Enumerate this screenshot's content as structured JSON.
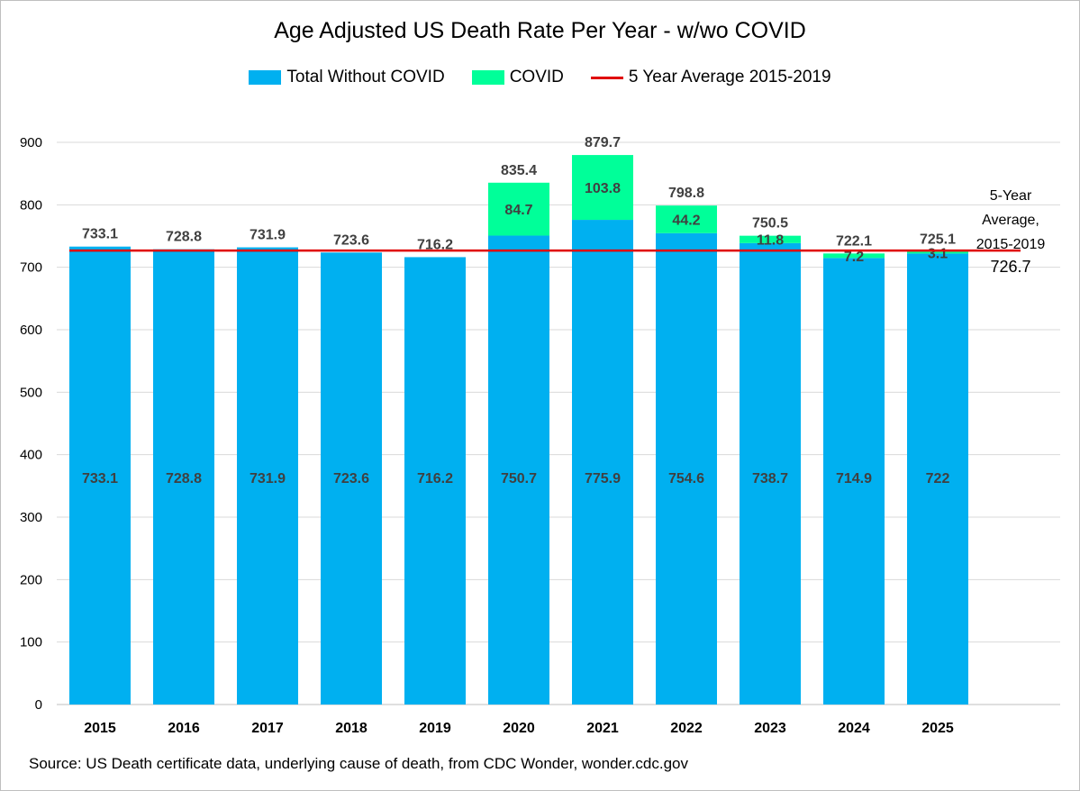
{
  "chart_data": {
    "type": "bar",
    "stacked": true,
    "title": "Age Adjusted US Death Rate Per Year - w/wo COVID",
    "categories": [
      "2015",
      "2016",
      "2017",
      "2018",
      "2019",
      "2020",
      "2021",
      "2022",
      "2023",
      "2024",
      "2025"
    ],
    "series": [
      {
        "name": "Total Without COVID",
        "color": "#00B0F0",
        "values": [
          733.1,
          728.8,
          731.9,
          723.6,
          716.2,
          750.7,
          775.9,
          754.6,
          738.7,
          714.9,
          722
        ]
      },
      {
        "name": "COVID",
        "color": "#00FF99",
        "values": [
          null,
          null,
          null,
          null,
          null,
          84.7,
          103.8,
          44.2,
          11.8,
          7.2,
          3.1
        ]
      }
    ],
    "totals": [
      "733.1",
      "728.8",
      "731.9",
      "723.6",
      "716.2",
      "835.4",
      "879.7",
      "798.8",
      "750.5",
      "722.1",
      "725.1"
    ],
    "base_labels": [
      "733.1",
      "728.8",
      "731.9",
      "723.6",
      "716.2",
      "750.7",
      "775.9",
      "754.6",
      "738.7",
      "714.9",
      "722"
    ],
    "covid_labels": [
      "",
      "",
      "",
      "",
      "",
      "84.7",
      "103.8",
      "44.2",
      "11.8",
      "7.2",
      "3.1"
    ],
    "reference_line": {
      "name": "5 Year Average 2015-2019",
      "value": 726.7,
      "color": "#E00000"
    },
    "reference_note": {
      "line1": "5-Year",
      "line2": "Average,",
      "line3": "2015-2019",
      "value": "726.7"
    },
    "ylim": [
      0,
      900
    ],
    "yticks": [
      "0",
      "100",
      "200",
      "300",
      "400",
      "500",
      "600",
      "700",
      "800",
      "900"
    ],
    "grid": true,
    "legend_position": "top"
  },
  "legend": {
    "items": [
      {
        "label": "Total Without COVID",
        "color": "#00B0F0"
      },
      {
        "label": "COVID",
        "color": "#00FF99"
      },
      {
        "label": "5 Year Average 2015-2019",
        "color": "#E00000"
      }
    ]
  },
  "source": "Source: US Death certificate data, underlying cause of death, from CDC Wonder, wonder.cdc.gov"
}
